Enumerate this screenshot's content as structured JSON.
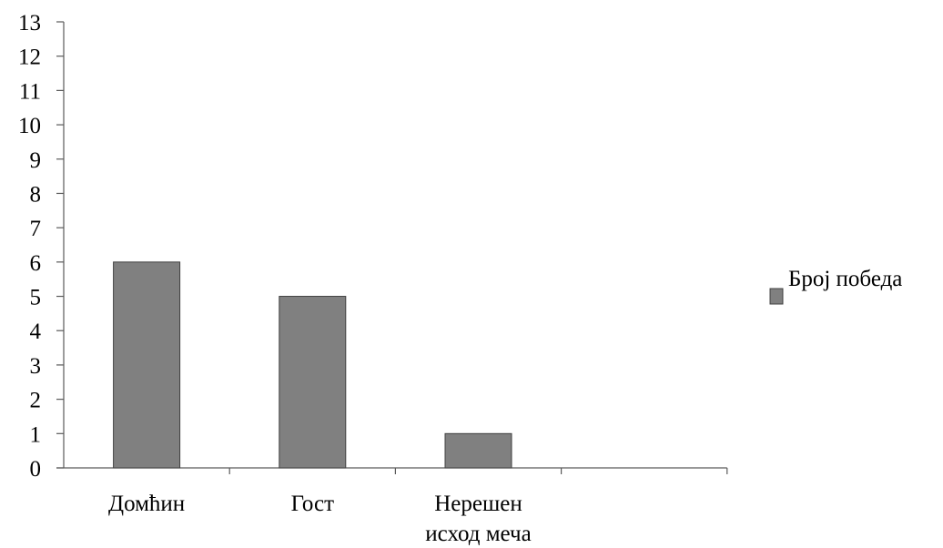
{
  "chart_data": {
    "type": "bar",
    "categories": [
      "Домћин",
      "Гост",
      "Нерешен исход меча"
    ],
    "category_lines": [
      [
        "Домћин"
      ],
      [
        "Гост"
      ],
      [
        "Нерешен",
        "исход меча"
      ]
    ],
    "series": [
      {
        "name": "Број победа",
        "values": [
          6,
          5,
          1
        ]
      }
    ],
    "title": "",
    "xlabel": "",
    "ylabel": "",
    "ylim": [
      0,
      13
    ],
    "yticks": [
      0,
      1,
      2,
      3,
      4,
      5,
      6,
      7,
      8,
      9,
      10,
      11,
      12,
      13
    ],
    "grid": false,
    "legend_position": "right",
    "colors": {
      "bar_fill": "#808080",
      "bar_stroke": "#404040",
      "axis": "#5a5a5a"
    }
  }
}
